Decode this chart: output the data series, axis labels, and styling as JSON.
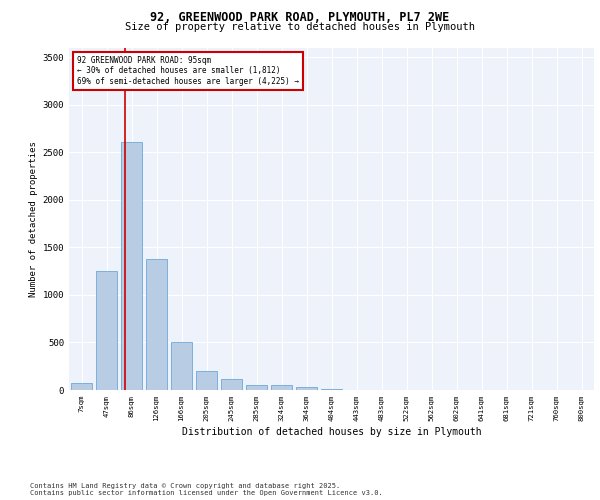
{
  "title_line1": "92, GREENWOOD PARK ROAD, PLYMOUTH, PL7 2WE",
  "title_line2": "Size of property relative to detached houses in Plymouth",
  "xlabel": "Distribution of detached houses by size in Plymouth",
  "ylabel": "Number of detached properties",
  "categories": [
    "7sqm",
    "47sqm",
    "86sqm",
    "126sqm",
    "166sqm",
    "205sqm",
    "245sqm",
    "285sqm",
    "324sqm",
    "364sqm",
    "404sqm",
    "443sqm",
    "483sqm",
    "522sqm",
    "562sqm",
    "602sqm",
    "641sqm",
    "681sqm",
    "721sqm",
    "760sqm",
    "800sqm"
  ],
  "values": [
    75,
    1255,
    2610,
    1380,
    500,
    195,
    120,
    55,
    50,
    35,
    10,
    5,
    2,
    0,
    0,
    0,
    0,
    0,
    0,
    0,
    0
  ],
  "bar_color": "#b8cce4",
  "bar_edge_color": "#5b9bd5",
  "vline_color": "#cc0000",
  "vline_x": 1.72,
  "annotation_title": "92 GREENWOOD PARK ROAD: 95sqm",
  "annotation_line2": "← 30% of detached houses are smaller (1,812)",
  "annotation_line3": "69% of semi-detached houses are larger (4,225) →",
  "annotation_box_color": "#cc0000",
  "ylim": [
    0,
    3600
  ],
  "yticks": [
    0,
    500,
    1000,
    1500,
    2000,
    2500,
    3000,
    3500
  ],
  "background_color": "#eef2fa",
  "grid_color": "#ffffff",
  "footer_line1": "Contains HM Land Registry data © Crown copyright and database right 2025.",
  "footer_line2": "Contains public sector information licensed under the Open Government Licence v3.0."
}
